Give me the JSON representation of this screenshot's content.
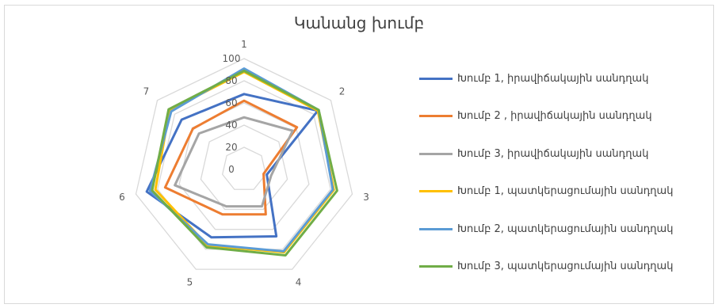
{
  "chart_data": {
    "type": "radar",
    "title": "Կանանց խումբ",
    "axes": [
      "1",
      "2",
      "3",
      "4",
      "5",
      "6",
      "7"
    ],
    "rlim": [
      0,
      100
    ],
    "r_ticks": [
      "0",
      "20",
      "40",
      "60",
      "80",
      "100"
    ],
    "grid": true,
    "legend_position": "right",
    "series": [
      {
        "name": "Խումբ 1, իրավիճակային սանդղակ",
        "color": "#4472c4",
        "values": [
          68,
          85,
          21,
          67,
          68,
          90,
          72
        ]
      },
      {
        "name": "Խումբ 2 , իրավիճակային սանդղակ",
        "color": "#ed7d31",
        "values": [
          62,
          61,
          18,
          45,
          45,
          73,
          59
        ]
      },
      {
        "name": "Խումբ 3, իրավիճակային սանդղակ",
        "color": "#a5a5a5",
        "values": [
          47,
          56,
          25,
          37,
          37,
          64,
          52
        ]
      },
      {
        "name": "Խումբ 1, պատկերացումային սանդղակ",
        "color": "#ffc000",
        "values": [
          88,
          85,
          83,
          83,
          76,
          82,
          86
        ]
      },
      {
        "name": "Խումբ 2, պատկերացումային սանդղակ",
        "color": "#5b9bd5",
        "values": [
          91,
          86,
          82,
          82,
          75,
          87,
          84
        ]
      },
      {
        "name": "Խումբ 3, պատկերացումային սանդղակ",
        "color": "#70ad47",
        "values": [
          89,
          86,
          86,
          86,
          78,
          85,
          87
        ]
      }
    ]
  }
}
